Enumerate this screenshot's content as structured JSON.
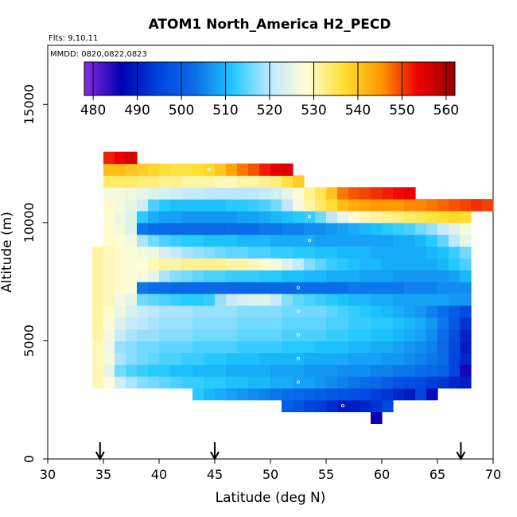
{
  "chart_data": {
    "type": "heatmap",
    "title": "ATOM1 North_America H2_PECD",
    "annotations": {
      "flights": "Flts: 9,10,11",
      "dates": "MMDD: 0820,0822,0823"
    },
    "xlabel": "Latitude (deg N)",
    "ylabel": "Altitude (m)",
    "xlim": [
      30,
      70
    ],
    "ylim": [
      0,
      17500
    ],
    "x_ticks": [
      30,
      35,
      40,
      45,
      50,
      55,
      60,
      65,
      70
    ],
    "y_ticks": [
      0,
      5000,
      10000,
      15000
    ],
    "x_step": 1,
    "y_step": 500,
    "colorbar": {
      "min": 478,
      "max": 562,
      "ticks": [
        480,
        490,
        500,
        510,
        520,
        530,
        540,
        550,
        560
      ],
      "colors": [
        "#8a2be2",
        "#0000b0",
        "#0044dd",
        "#0a6ee8",
        "#1ec8ff",
        "#bfe8ff",
        "#fffdd6",
        "#ffe033",
        "#ff9900",
        "#ee0000",
        "#960000"
      ]
    },
    "arrows_lat": [
      34.7,
      45,
      67.1
    ],
    "rows": [
      {
        "alt": 1750,
        "lat0": 59,
        "values": [
          486
        ]
      },
      {
        "alt": 2250,
        "lat0": 51,
        "values": [
          500,
          498,
          495,
          494,
          492,
          490,
          490,
          491,
          493,
          496
        ]
      },
      {
        "alt": 2750,
        "lat0": 43,
        "values": [
          512,
          510,
          509,
          508,
          507,
          506,
          505,
          504,
          503,
          502,
          501,
          500,
          499,
          498,
          497,
          496,
          494,
          493,
          491,
          490,
          495,
          488
        ]
      },
      {
        "alt": 3250,
        "lat0": 34,
        "values": [
          530,
          528,
          522,
          519,
          517,
          516,
          515,
          514,
          513,
          513,
          512,
          512,
          511,
          511,
          510,
          510,
          509,
          509,
          508,
          508,
          507,
          506,
          505,
          504,
          503,
          502,
          500,
          498,
          497,
          496,
          494,
          493,
          491,
          490
        ]
      },
      {
        "alt": 3750,
        "lat0": 34,
        "values": [
          530,
          525,
          516,
          514,
          513,
          512,
          512,
          511,
          511,
          510,
          510,
          510,
          509,
          509,
          509,
          509,
          508,
          508,
          508,
          507,
          507,
          507,
          506,
          506,
          506,
          505,
          505,
          504,
          504,
          503,
          502,
          501,
          495,
          485
        ]
      },
      {
        "alt": 4250,
        "lat0": 34,
        "values": [
          530,
          527,
          519,
          517,
          516,
          515,
          514,
          514,
          513,
          513,
          512,
          512,
          511,
          511,
          511,
          510,
          510,
          510,
          510,
          509,
          509,
          509,
          509,
          508,
          508,
          508,
          507,
          507,
          506,
          505,
          504,
          503,
          495,
          491
        ]
      },
      {
        "alt": 4750,
        "lat0": 34,
        "values": [
          530,
          526,
          518,
          517,
          516,
          516,
          515,
          515,
          515,
          514,
          514,
          514,
          514,
          513,
          513,
          513,
          513,
          512,
          512,
          512,
          511,
          511,
          511,
          510,
          510,
          509,
          509,
          508,
          507,
          506,
          505,
          502,
          496,
          490
        ]
      },
      {
        "alt": 5250,
        "lat0": 34,
        "values": [
          531,
          527,
          521,
          519,
          518,
          518,
          517,
          517,
          517,
          516,
          516,
          516,
          516,
          515,
          515,
          515,
          515,
          514,
          514,
          514,
          514,
          513,
          513,
          512,
          512,
          511,
          511,
          510,
          509,
          508,
          506,
          503,
          497,
          491
        ]
      },
      {
        "alt": 5750,
        "lat0": 34,
        "values": [
          531,
          528,
          524,
          521,
          520,
          519,
          518,
          518,
          518,
          517,
          517,
          517,
          517,
          516,
          516,
          516,
          516,
          515,
          515,
          515,
          515,
          514,
          514,
          513,
          513,
          512,
          512,
          511,
          510,
          509,
          507,
          504,
          499,
          493
        ]
      },
      {
        "alt": 6250,
        "lat0": 34,
        "values": [
          531,
          529,
          526,
          523,
          521,
          520,
          519,
          519,
          519,
          518,
          518,
          518,
          518,
          517,
          517,
          517,
          517,
          516,
          516,
          516,
          516,
          515,
          514,
          513,
          512,
          511,
          510,
          509,
          508,
          507,
          505,
          503,
          500,
          496
        ]
      },
      {
        "alt": 6750,
        "lat0": 34,
        "values": [
          531,
          530,
          527,
          525,
          516,
          515,
          514,
          513,
          512,
          512,
          513,
          518,
          521,
          523,
          524,
          524,
          521,
          517,
          515,
          514,
          513,
          512,
          511,
          510,
          510,
          509,
          509,
          508,
          508,
          508,
          508,
          508,
          507,
          507
        ]
      },
      {
        "alt": 7250,
        "lat0": 34,
        "values": [
          531,
          530,
          529,
          528,
          504,
          503,
          503,
          502,
          502,
          502,
          502,
          502,
          502,
          502,
          502,
          502,
          502,
          502,
          503,
          503,
          503,
          503,
          503,
          504,
          504,
          504,
          504,
          504,
          505,
          505,
          505,
          506,
          506,
          506
        ]
      },
      {
        "alt": 7750,
        "lat0": 34,
        "values": [
          531,
          530,
          529,
          528,
          527,
          525,
          519,
          517,
          516,
          515,
          514,
          514,
          513,
          513,
          513,
          512,
          512,
          511,
          511,
          510,
          510,
          509,
          509,
          509,
          508,
          508,
          508,
          507,
          507,
          507,
          507,
          507,
          508,
          510
        ]
      },
      {
        "alt": 8250,
        "lat0": 34,
        "values": [
          531,
          530,
          529,
          528,
          528,
          530,
          531,
          531,
          532,
          532,
          532,
          532,
          531,
          531,
          530,
          529,
          527,
          524,
          520,
          517,
          515,
          513,
          512,
          511,
          510,
          510,
          509,
          509,
          509,
          509,
          509,
          510,
          512,
          514
        ]
      },
      {
        "alt": 8750,
        "lat0": 34,
        "values": [
          531,
          530,
          529,
          528,
          527,
          526,
          523,
          521,
          519,
          518,
          517,
          516,
          515,
          515,
          514,
          514,
          513,
          513,
          512,
          512,
          511,
          511,
          510,
          510,
          510,
          509,
          509,
          509,
          509,
          509,
          510,
          511,
          513,
          516
        ]
      },
      {
        "alt": 9250,
        "lat0": 35,
        "values": [
          529,
          528,
          527,
          519,
          516,
          514,
          513,
          512,
          512,
          511,
          511,
          511,
          510,
          510,
          510,
          509,
          509,
          509,
          509,
          508,
          508,
          508,
          508,
          508,
          508,
          508,
          509,
          509,
          510,
          512,
          515,
          520,
          525
        ]
      },
      {
        "alt": 9750,
        "lat0": 35,
        "values": [
          529,
          527,
          524,
          504,
          503,
          502,
          502,
          502,
          502,
          502,
          502,
          503,
          503,
          503,
          504,
          504,
          505,
          505,
          506,
          506,
          507,
          508,
          509,
          510,
          511,
          512,
          513,
          514,
          516,
          518,
          521,
          524,
          527
        ]
      },
      {
        "alt": 10250,
        "lat0": 35,
        "values": [
          528,
          526,
          524,
          512,
          509,
          508,
          508,
          507,
          507,
          507,
          507,
          507,
          508,
          508,
          509,
          510,
          511,
          512,
          513,
          516,
          520,
          525,
          528,
          530,
          531,
          532,
          533,
          534,
          535,
          536,
          537,
          538,
          537
        ]
      },
      {
        "alt": 10750,
        "lat0": 35,
        "values": [
          529,
          527,
          525,
          522,
          514,
          512,
          511,
          511,
          511,
          511,
          511,
          512,
          512,
          513,
          514,
          516,
          520,
          527,
          531,
          534,
          537,
          541,
          543,
          544,
          545,
          545,
          545,
          546,
          546,
          547,
          548,
          549,
          550,
          551,
          550
        ]
      },
      {
        "alt": 11250,
        "lat0": 35,
        "values": [
          527,
          527,
          526,
          525,
          524,
          523,
          522,
          521,
          521,
          520,
          520,
          520,
          520,
          520,
          521,
          522,
          525,
          528,
          532,
          535,
          540,
          547,
          549,
          550,
          551,
          552,
          553,
          554
        ]
      },
      {
        "alt": 11750,
        "lat0": 35,
        "values": [
          534,
          534,
          534,
          533,
          533,
          532,
          532,
          531,
          531,
          531,
          530,
          530,
          531,
          531,
          532,
          533,
          536,
          539
        ]
      },
      {
        "alt": 12250,
        "lat0": 35,
        "values": [
          541,
          541,
          540,
          539,
          538,
          537,
          536,
          536,
          537,
          538,
          540,
          544,
          547,
          549,
          552,
          554,
          555
        ]
      },
      {
        "alt": 12750,
        "lat0": 35,
        "values": [
          552,
          554,
          556
        ]
      }
    ]
  }
}
